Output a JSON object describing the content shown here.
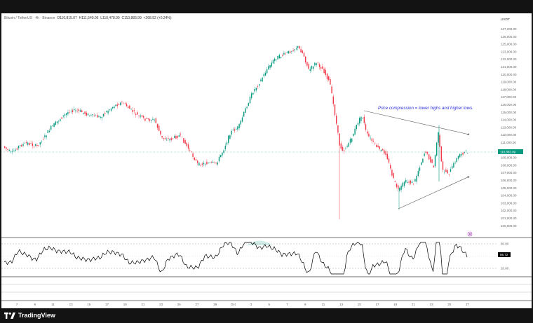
{
  "header": {
    "symbol": "Bitcoin / TetherUS · 4h · Binance",
    "open": "O110,815.07",
    "high": "H111,540.06",
    "low": "L110,478.00",
    "close": "C110,883.99",
    "change": "+268.92 (+0.24%)"
  },
  "price_axis": {
    "currency": "USDT",
    "ticks": [
      "127,200.00",
      "126,000.00",
      "125,000.00",
      "123,000.00",
      "122,000.00",
      "121,000.00",
      "120,000.00",
      "119,000.00",
      "118,000.00",
      "117,000.00",
      "116,000.00",
      "115,000.00",
      "114,000.00",
      "113,000.00",
      "112,000.00",
      "111,000.00",
      "110,000.00",
      "109,000.00",
      "108,000.00",
      "107,000.00",
      "106,000.00",
      "105,000.00",
      "104,000.00",
      "103,000.00",
      "102,000.00",
      "101,000.00",
      "100,000.00"
    ],
    "last_price_label": "110,883.99"
  },
  "time_axis": {
    "ticks": [
      "7",
      "9",
      "11",
      "13",
      "15",
      "17",
      "19",
      "21",
      "23",
      "25",
      "27",
      "29",
      "Oct",
      "3",
      "5",
      "7",
      "9",
      "11",
      "13",
      "15",
      "17",
      "19",
      "21",
      "23",
      "25",
      "27"
    ]
  },
  "annotation": {
    "text": "Price compression = lower highs and higher lows."
  },
  "rsi": {
    "levels": [
      "80.00",
      "20.00"
    ],
    "value": "56.72"
  },
  "footer": {
    "brand": "TradingView"
  },
  "colors": {
    "up": "#089981",
    "down": "#f23645",
    "annotation": "#2a2ed8",
    "rsi": "#000000",
    "overbought_fill": "#089981"
  },
  "chart_data": {
    "type": "candlestick",
    "ylim": [
      100000,
      127200
    ],
    "last_close": 110883.99,
    "rsi_last": 56.72,
    "rsi_levels": [
      80,
      20
    ]
  }
}
